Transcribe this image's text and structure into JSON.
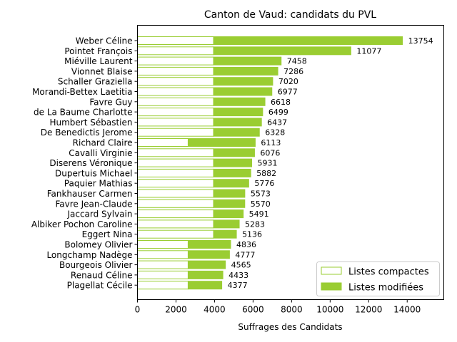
{
  "chart_data": {
    "type": "bar",
    "orientation": "horizontal",
    "stacked": true,
    "title": "Canton de Vaud: candidats du PVL",
    "xlabel": "Suffrages des Candidats",
    "ylabel": "",
    "xlim": [
      0,
      15900
    ],
    "xticks": [
      "0",
      "2000",
      "4000",
      "6000",
      "8000",
      "10000",
      "12000",
      "14000"
    ],
    "grid": false,
    "legend_position": "lower-right",
    "accent_color": "#9acd32",
    "categories": [
      "Weber Céline",
      "Pointet François",
      "Miéville Laurent",
      "Vionnet Blaise",
      "Schaller Graziella",
      "Morandi-Bettex Laetitia",
      "Favre Guy",
      "de La Baume Charlotte",
      "Humbert Sébastien",
      "De Benedictis Jerome",
      "Richard Claire",
      "Cavalli Virginie",
      "Diserens Véronique",
      "Dupertuis Michael",
      "Paquier Mathias",
      "Fankhauser Carmen",
      "Favre Jean-Claude",
      "Jaccard Sylvain",
      "Albiker Pochon Caroline",
      "Eggert Nina",
      "Bolomey Olivier",
      "Longchamp Nadège",
      "Bourgeois Olivier",
      "Renaud Céline",
      "Plagellat Cécile"
    ],
    "totals": [
      "13754",
      "11077",
      "7458",
      "7286",
      "7020",
      "6977",
      "6618",
      "6499",
      "6437",
      "6328",
      "6113",
      "6076",
      "5931",
      "5882",
      "5776",
      "5573",
      "5570",
      "5491",
      "5283",
      "5136",
      "4836",
      "4777",
      "4565",
      "4433",
      "4377"
    ],
    "series": [
      {
        "name": "Listes compactes",
        "values": [
          3950,
          3950,
          3950,
          3950,
          3950,
          3950,
          3950,
          3950,
          3950,
          3950,
          2630,
          3950,
          3950,
          3950,
          3950,
          3950,
          3950,
          3950,
          3950,
          3950,
          2630,
          2630,
          2630,
          2630,
          2630
        ]
      },
      {
        "name": "Listes modifiées",
        "values": [
          9804,
          7127,
          3508,
          3336,
          3070,
          3027,
          2668,
          2549,
          2487,
          2378,
          3483,
          2126,
          1981,
          1932,
          1826,
          1623,
          1620,
          1541,
          1333,
          1186,
          2206,
          2147,
          1935,
          1803,
          1747
        ]
      }
    ]
  }
}
